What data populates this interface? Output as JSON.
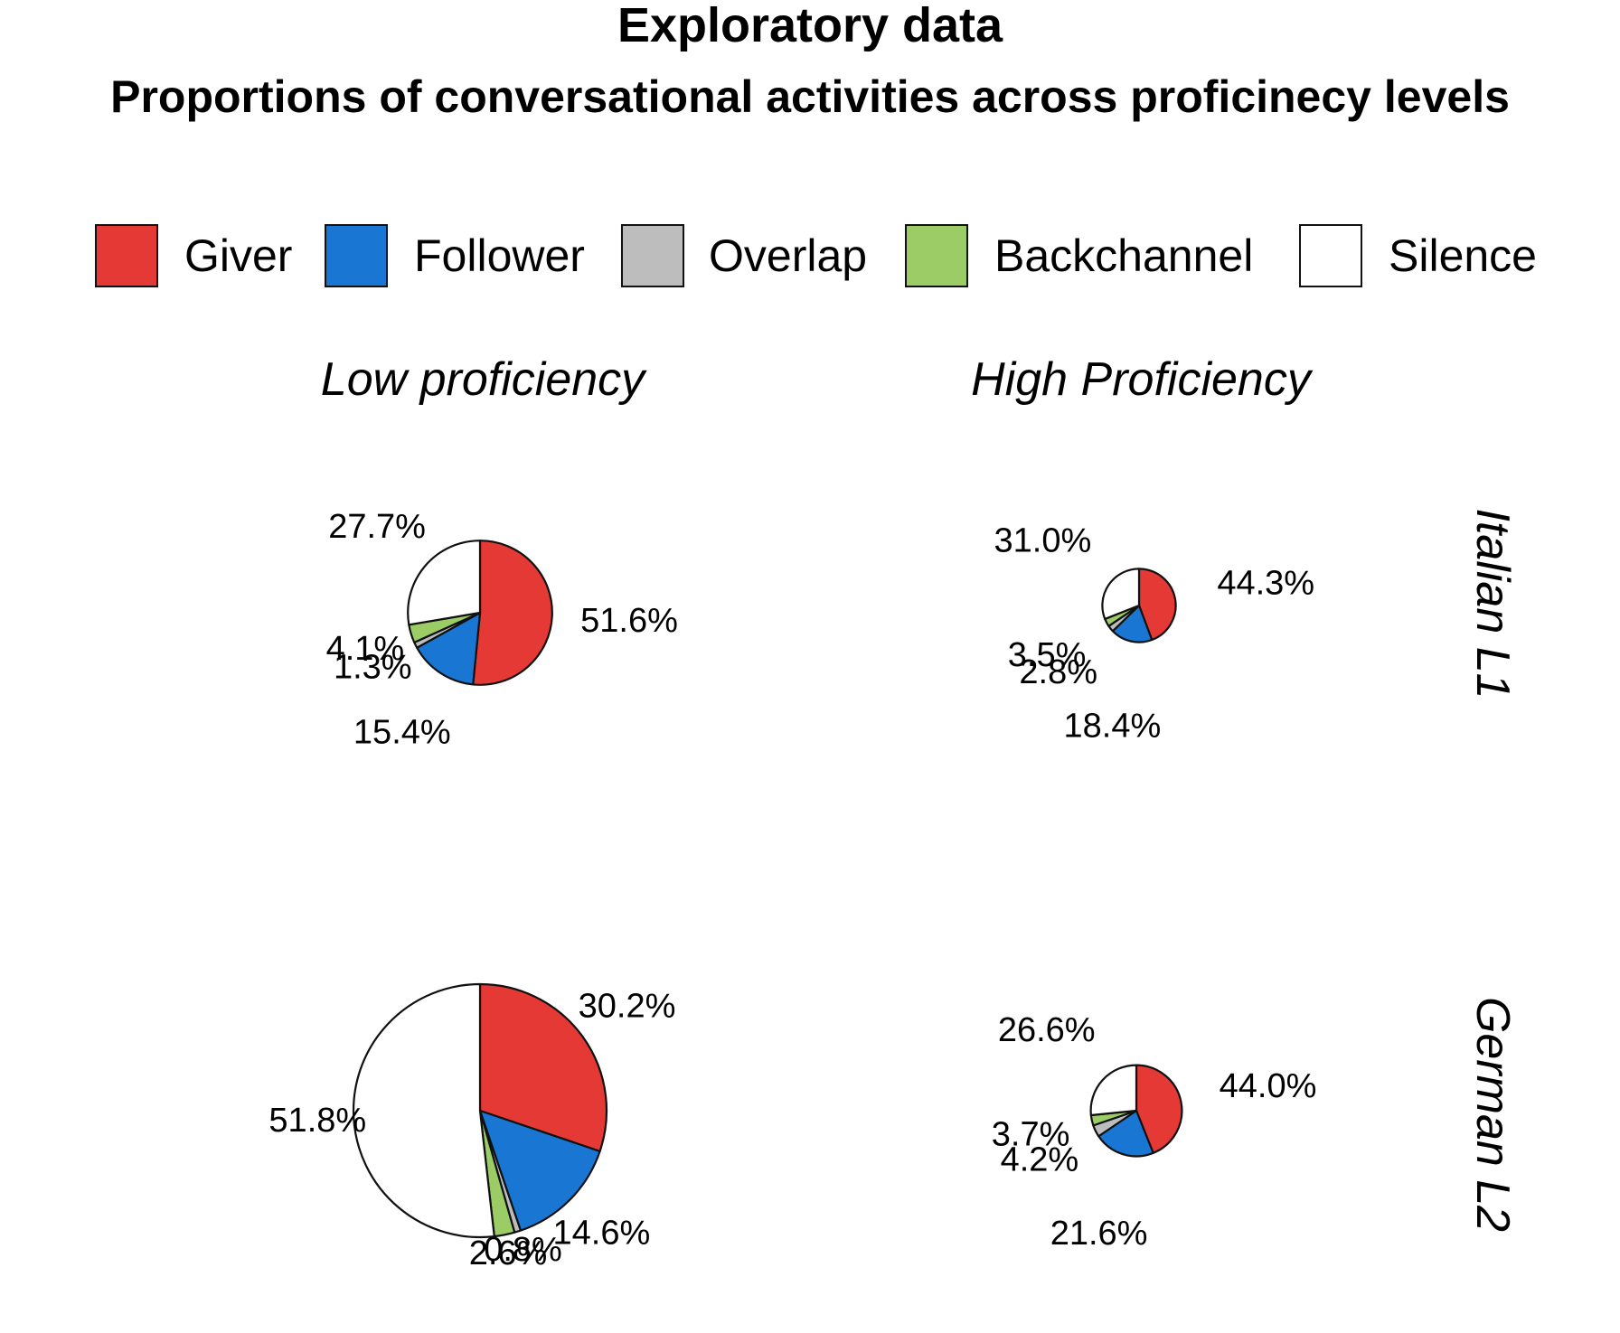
{
  "chart_data": {
    "type": "pie",
    "title": "Exploratory data",
    "subtitle": "Proportions of conversational activities across proficinecy levels",
    "legend": [
      {
        "name": "Giver",
        "color": "#e53935"
      },
      {
        "name": "Follower",
        "color": "#1976d2"
      },
      {
        "name": "Overlap",
        "color": "#bdbdbd"
      },
      {
        "name": "Backchannel",
        "color": "#9ccc65"
      },
      {
        "name": "Silence",
        "color": "#ffffff"
      }
    ],
    "legend_position": "top",
    "columns": [
      "Low proficiency",
      "High Proficiency"
    ],
    "rows": [
      "Italian L1",
      "German L2"
    ],
    "panels": [
      {
        "row": "Italian L1",
        "column": "Low proficiency",
        "size": 0.57,
        "values": [
          51.6,
          15.4,
          1.3,
          4.1,
          27.7
        ],
        "labels": [
          "51.6%",
          "15.4%",
          "1.3%",
          "4.1%",
          "27.7%"
        ]
      },
      {
        "row": "Italian L1",
        "column": "High Proficiency",
        "size": 0.29,
        "values": [
          44.3,
          18.4,
          2.8,
          3.5,
          31.0
        ],
        "labels": [
          "44.3%",
          "18.4%",
          "2.8%",
          "3.5%",
          "31.0%"
        ]
      },
      {
        "row": "German L2",
        "column": "Low proficiency",
        "size": 1.0,
        "values": [
          30.2,
          14.6,
          0.8,
          2.6,
          51.8
        ],
        "labels": [
          "30.2%",
          "14.6%",
          "0.8%",
          "2.6%",
          "51.8%"
        ]
      },
      {
        "row": "German L2",
        "column": "High Proficiency",
        "size": 0.36,
        "values": [
          44.0,
          21.6,
          4.2,
          3.7,
          26.6
        ],
        "labels": [
          "44.0%",
          "21.6%",
          "4.2%",
          "3.7%",
          "26.6%"
        ]
      }
    ]
  }
}
